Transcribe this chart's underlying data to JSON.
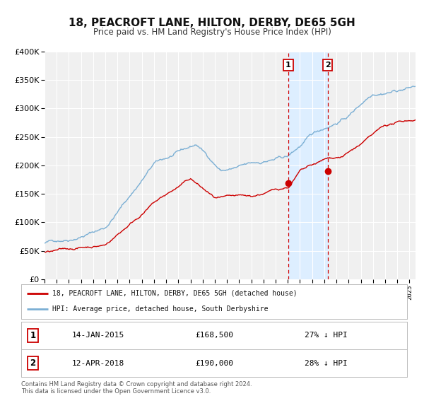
{
  "title": "18, PEACROFT LANE, HILTON, DERBY, DE65 5GH",
  "subtitle": "Price paid vs. HM Land Registry's House Price Index (HPI)",
  "legend_line1": "18, PEACROFT LANE, HILTON, DERBY, DE65 5GH (detached house)",
  "legend_line2": "HPI: Average price, detached house, South Derbyshire",
  "marker1_date": "14-JAN-2015",
  "marker1_price": 168500,
  "marker1_label": "27% ↓ HPI",
  "marker2_date": "12-APR-2018",
  "marker2_price": 190000,
  "marker2_label": "28% ↓ HPI",
  "marker1_x": 2015.04,
  "marker2_x": 2018.28,
  "vline1_x": 2015.04,
  "vline2_x": 2018.28,
  "red_color": "#cc0000",
  "blue_color": "#7bafd4",
  "shade_color": "#ddeeff",
  "footer_line1": "Contains HM Land Registry data © Crown copyright and database right 2024.",
  "footer_line2": "This data is licensed under the Open Government Licence v3.0.",
  "ylim": [
    0,
    400000
  ],
  "xlim_left": 1995,
  "xlim_right": 2025.5,
  "background_color": "#f0f0f0",
  "grid_color": "#ffffff",
  "title_fontsize": 11,
  "subtitle_fontsize": 8.5
}
